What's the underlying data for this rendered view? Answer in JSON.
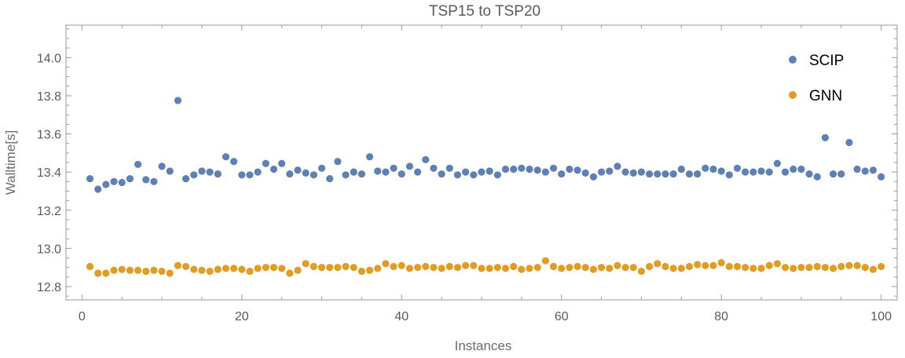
{
  "chart_data": {
    "type": "scatter",
    "title": "TSP15 to TSP20",
    "xlabel": "Instances",
    "ylabel": "Walltime[s]",
    "xlim": [
      -2,
      102
    ],
    "ylim": [
      12.73,
      14.17
    ],
    "xticks": [
      0,
      20,
      40,
      60,
      80,
      100
    ],
    "yticks": [
      12.8,
      13.0,
      13.2,
      13.4,
      13.6,
      13.8,
      14.0
    ],
    "grid": false,
    "legend_position": "top-right",
    "x": [
      1,
      2,
      3,
      4,
      5,
      6,
      7,
      8,
      9,
      10,
      11,
      12,
      13,
      14,
      15,
      16,
      17,
      18,
      19,
      20,
      21,
      22,
      23,
      24,
      25,
      26,
      27,
      28,
      29,
      30,
      31,
      32,
      33,
      34,
      35,
      36,
      37,
      38,
      39,
      40,
      41,
      42,
      43,
      44,
      45,
      46,
      47,
      48,
      49,
      50,
      51,
      52,
      53,
      54,
      55,
      56,
      57,
      58,
      59,
      60,
      61,
      62,
      63,
      64,
      65,
      66,
      67,
      68,
      69,
      70,
      71,
      72,
      73,
      74,
      75,
      76,
      77,
      78,
      79,
      80,
      81,
      82,
      83,
      84,
      85,
      86,
      87,
      88,
      89,
      90,
      91,
      92,
      93,
      94,
      95,
      96,
      97,
      98,
      99,
      100
    ],
    "series": [
      {
        "name": "SCIP",
        "color": "#5E81B5",
        "values": [
          13.365,
          13.31,
          13.335,
          13.35,
          13.345,
          13.365,
          13.44,
          13.36,
          13.35,
          13.43,
          13.405,
          13.775,
          13.365,
          13.385,
          13.405,
          13.4,
          13.39,
          13.48,
          13.455,
          13.385,
          13.385,
          13.4,
          13.445,
          13.415,
          13.445,
          13.39,
          13.41,
          13.395,
          13.385,
          13.42,
          13.365,
          13.455,
          13.385,
          13.4,
          13.39,
          13.48,
          13.405,
          13.4,
          13.42,
          13.39,
          13.43,
          13.4,
          13.465,
          13.42,
          13.39,
          13.42,
          13.385,
          13.4,
          13.385,
          13.4,
          13.405,
          13.385,
          13.415,
          13.415,
          13.42,
          13.415,
          13.41,
          13.4,
          13.42,
          13.39,
          13.415,
          13.41,
          13.395,
          13.375,
          13.4,
          13.405,
          13.43,
          13.4,
          13.395,
          13.4,
          13.39,
          13.39,
          13.39,
          13.39,
          13.415,
          13.39,
          13.39,
          13.42,
          13.415,
          13.405,
          13.385,
          13.42,
          13.4,
          13.4,
          13.405,
          13.4,
          13.445,
          13.4,
          13.415,
          13.415,
          13.39,
          13.375,
          13.58,
          13.39,
          13.39,
          13.555,
          13.415,
          13.405,
          13.41,
          13.375
        ]
      },
      {
        "name": "GNN",
        "color": "#E19C24",
        "values": [
          12.905,
          12.87,
          12.87,
          12.885,
          12.89,
          12.885,
          12.885,
          12.88,
          12.885,
          12.88,
          12.87,
          12.91,
          12.905,
          12.89,
          12.885,
          12.88,
          12.89,
          12.895,
          12.895,
          12.89,
          12.88,
          12.895,
          12.9,
          12.9,
          12.895,
          12.87,
          12.885,
          12.92,
          12.905,
          12.9,
          12.9,
          12.9,
          12.905,
          12.9,
          12.88,
          12.885,
          12.895,
          12.92,
          12.905,
          12.91,
          12.895,
          12.9,
          12.905,
          12.9,
          12.895,
          12.905,
          12.9,
          12.91,
          12.91,
          12.895,
          12.895,
          12.9,
          12.895,
          12.905,
          12.89,
          12.895,
          12.9,
          12.935,
          12.905,
          12.895,
          12.9,
          12.905,
          12.9,
          12.89,
          12.9,
          12.895,
          12.91,
          12.9,
          12.9,
          12.88,
          12.905,
          12.92,
          12.905,
          12.895,
          12.895,
          12.905,
          12.915,
          12.91,
          12.91,
          12.925,
          12.905,
          12.905,
          12.9,
          12.895,
          12.895,
          12.91,
          12.92,
          12.9,
          12.895,
          12.9,
          12.9,
          12.905,
          12.9,
          12.895,
          12.905,
          12.91,
          12.91,
          12.9,
          12.89,
          12.905
        ]
      }
    ]
  }
}
